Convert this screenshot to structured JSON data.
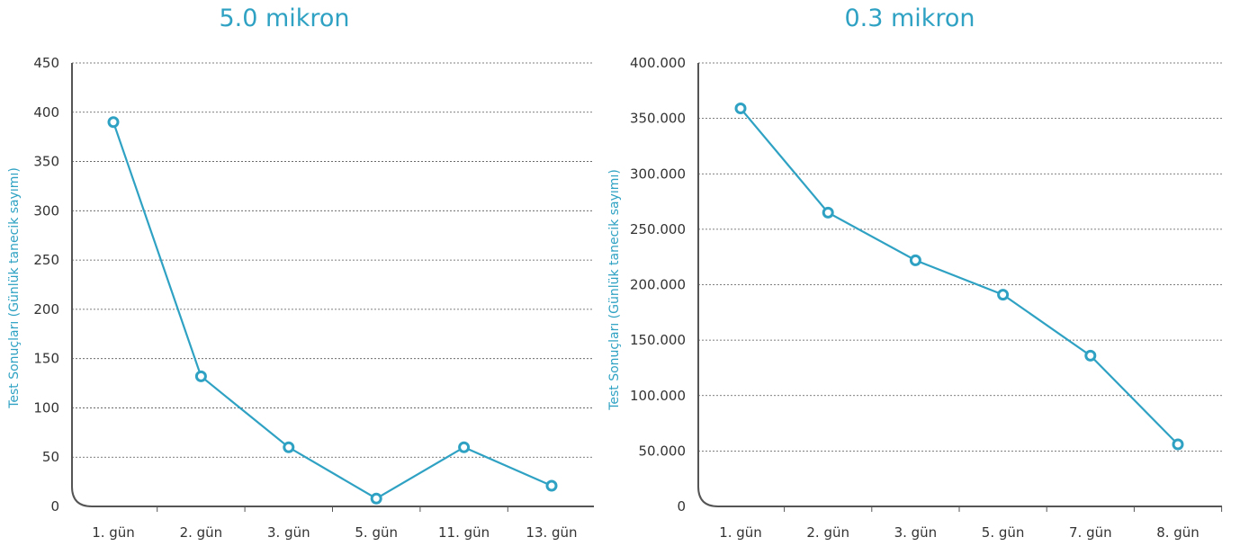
{
  "chart_data": [
    {
      "type": "line",
      "title": "5.0 mikron",
      "ylabel": "Test Sonuçları (Günlük tanecik sayımı)",
      "xlabel": "",
      "categories": [
        "1. gün",
        "2. gün",
        "3. gün",
        "5. gün",
        "11. gün",
        "13. gün"
      ],
      "values": [
        390,
        132,
        60,
        8,
        60,
        21
      ],
      "ylim": [
        0,
        450
      ],
      "yticks": [
        0,
        50,
        100,
        150,
        200,
        250,
        300,
        350,
        400,
        450
      ],
      "ytick_labels": [
        "0",
        "50",
        "100",
        "150",
        "200",
        "250",
        "300",
        "350",
        "400",
        "450"
      ],
      "grid": true,
      "color": "#2fa2c3"
    },
    {
      "type": "line",
      "title": "0.3 mikron",
      "ylabel": "Test Sonuçları (Günlük tanecik sayımı)",
      "xlabel": "",
      "categories": [
        "1. gün",
        "2. gün",
        "3. gün",
        "5. gün",
        "7. gün",
        "8. gün"
      ],
      "values": [
        359000,
        265000,
        222000,
        191000,
        136000,
        56000
      ],
      "ylim": [
        0,
        400000
      ],
      "yticks": [
        0,
        50000,
        100000,
        150000,
        200000,
        250000,
        300000,
        350000,
        400000
      ],
      "ytick_labels": [
        "0",
        "50.000",
        "100.000",
        "150.000",
        "200.000",
        "250.000",
        "300.000",
        "350.000",
        "400.000"
      ],
      "grid": true,
      "color": "#2fa2c3"
    }
  ]
}
